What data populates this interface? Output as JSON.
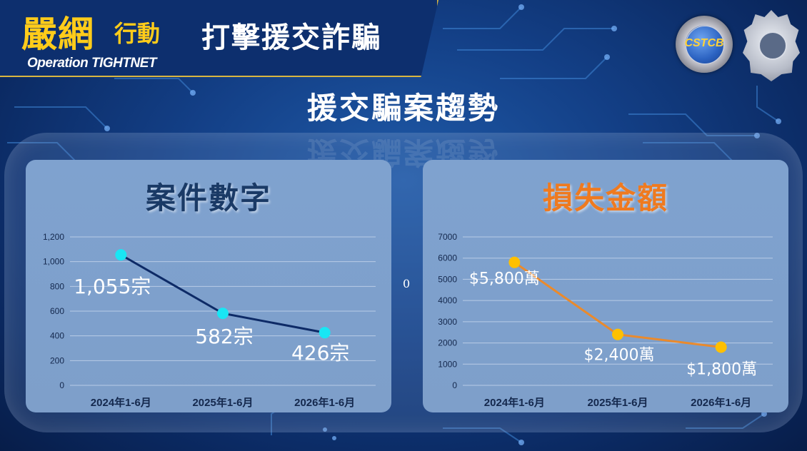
{
  "header": {
    "logo_main": "嚴網",
    "logo_sub": "行動",
    "logo_english": "Operation TIGHTNET",
    "title": "打擊援交詐騙"
  },
  "badges": {
    "cstcb_text": "CSTCB"
  },
  "main_title": "援交騙案趨勢",
  "center_zero": "0",
  "colors": {
    "left_line": "#0d2a66",
    "left_marker": "#18e6f4",
    "right_line": "#ea8a2c",
    "right_marker": "#ffc000",
    "right_title": "#ef7a1f",
    "left_title": "#1a3a66"
  },
  "chart_data": [
    {
      "type": "line",
      "title": "案件數字",
      "categories": [
        "2024年1-6月",
        "2025年1-6月",
        "2026年1-6月"
      ],
      "values": [
        1055,
        582,
        426
      ],
      "data_labels": [
        "1,055宗",
        "582宗",
        "426宗"
      ],
      "yticks": [
        "0",
        "200",
        "400",
        "600",
        "800",
        "1,000",
        "1,200"
      ],
      "ylim": [
        0,
        1200
      ],
      "grid": true
    },
    {
      "type": "line",
      "title": "損失金額",
      "categories": [
        "2024年1-6月",
        "2025年1-6月",
        "2026年1-6月"
      ],
      "values": [
        5800,
        2400,
        1800
      ],
      "data_labels": [
        "$5,800萬",
        "$2,400萬",
        "$1,800萬"
      ],
      "yticks": [
        "0",
        "1000",
        "2000",
        "3000",
        "4000",
        "5000",
        "6000",
        "7000"
      ],
      "ylim": [
        0,
        7000
      ],
      "grid": true
    }
  ]
}
